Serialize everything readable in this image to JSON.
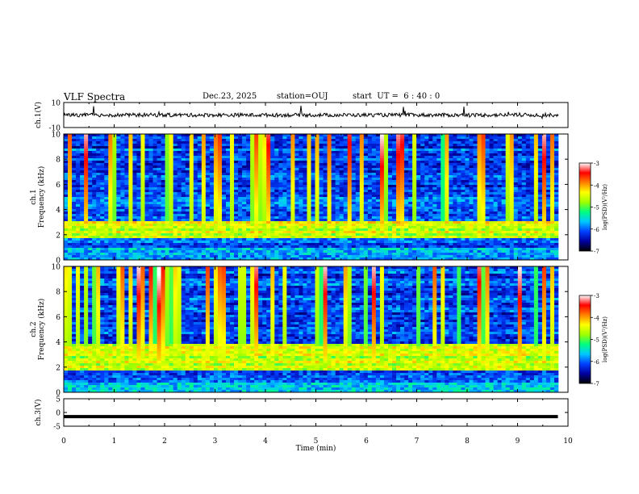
{
  "header": {
    "title": "VLF Spectra",
    "date": "Dec.23, 2025",
    "station": "station=OUJ",
    "start": "start  UT =  6 : 40 : 0"
  },
  "colorbar": {
    "label": "log(PSD)(V²/Hz)",
    "ticks": [
      "-3",
      "-4",
      "-5",
      "-6",
      "-7"
    ],
    "stops": [
      "#000000",
      "#0000a0",
      "#0040ff",
      "#00c8ff",
      "#00ff80",
      "#a0ff00",
      "#ffff00",
      "#ff8000",
      "#ff0000",
      "#ffffff"
    ]
  },
  "chart_data": [
    {
      "type": "line",
      "name": "ch1-waveform",
      "ylabel": "ch.1(V)",
      "ylim": [
        -10,
        10
      ],
      "yticks": [
        "10",
        "-10"
      ],
      "x": [
        0,
        1,
        2,
        3,
        4,
        5,
        6,
        7,
        8,
        9,
        9.8
      ],
      "values": [
        0,
        0,
        0,
        0,
        0,
        0,
        0,
        0,
        0,
        0,
        0
      ]
    },
    {
      "type": "heatmap",
      "name": "ch1-spectrogram",
      "ylabel": "ch.1 Frequency (kHz)",
      "ylim": [
        0,
        10
      ],
      "yticks": [
        "10",
        "8",
        "6",
        "4",
        "2",
        "0"
      ],
      "band_khz": [
        1.8,
        3.0
      ],
      "log_psd_range": [
        -7,
        -3
      ]
    },
    {
      "type": "heatmap",
      "name": "ch2-spectrogram",
      "ylabel": "ch.2 Frequency (kHz)",
      "ylim": [
        0,
        10
      ],
      "yticks": [
        "10",
        "8",
        "6",
        "4",
        "2",
        "0"
      ],
      "band_khz": [
        1.8,
        3.8
      ],
      "log_psd_range": [
        -7,
        -3
      ]
    },
    {
      "type": "line",
      "name": "ch3-waveform",
      "ylabel": "ch.3(V)",
      "ylim": [
        -5,
        5
      ],
      "yticks": [
        "5",
        "0",
        "-5"
      ],
      "x": [
        0,
        9.8
      ],
      "values": [
        -1.5,
        -1.5
      ]
    }
  ],
  "xaxis": {
    "label": "Time (min)",
    "ticks": [
      "0",
      "1",
      "2",
      "3",
      "4",
      "5",
      "6",
      "7",
      "8",
      "9",
      "10"
    ],
    "xlim": [
      0,
      10
    ]
  }
}
